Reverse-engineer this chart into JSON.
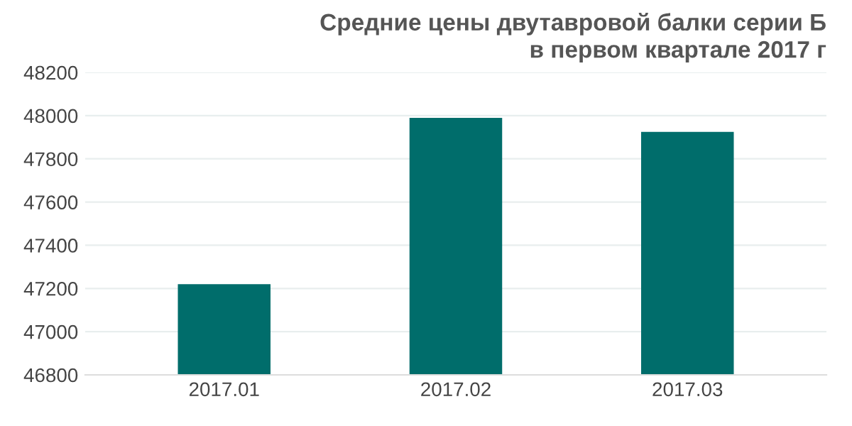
{
  "chart_data": {
    "type": "bar",
    "title": "Средние цены двутавровой балки серии Б\nв первом квартале 2017 г",
    "categories": [
      "2017.01",
      "2017.02",
      "2017.03"
    ],
    "values": [
      47220,
      47990,
      47925
    ],
    "color": "#006d6b",
    "ylim": [
      46800,
      48200
    ],
    "yticks": [
      46800,
      47000,
      47200,
      47400,
      47600,
      47800,
      48000,
      48200
    ],
    "grid": "y"
  }
}
